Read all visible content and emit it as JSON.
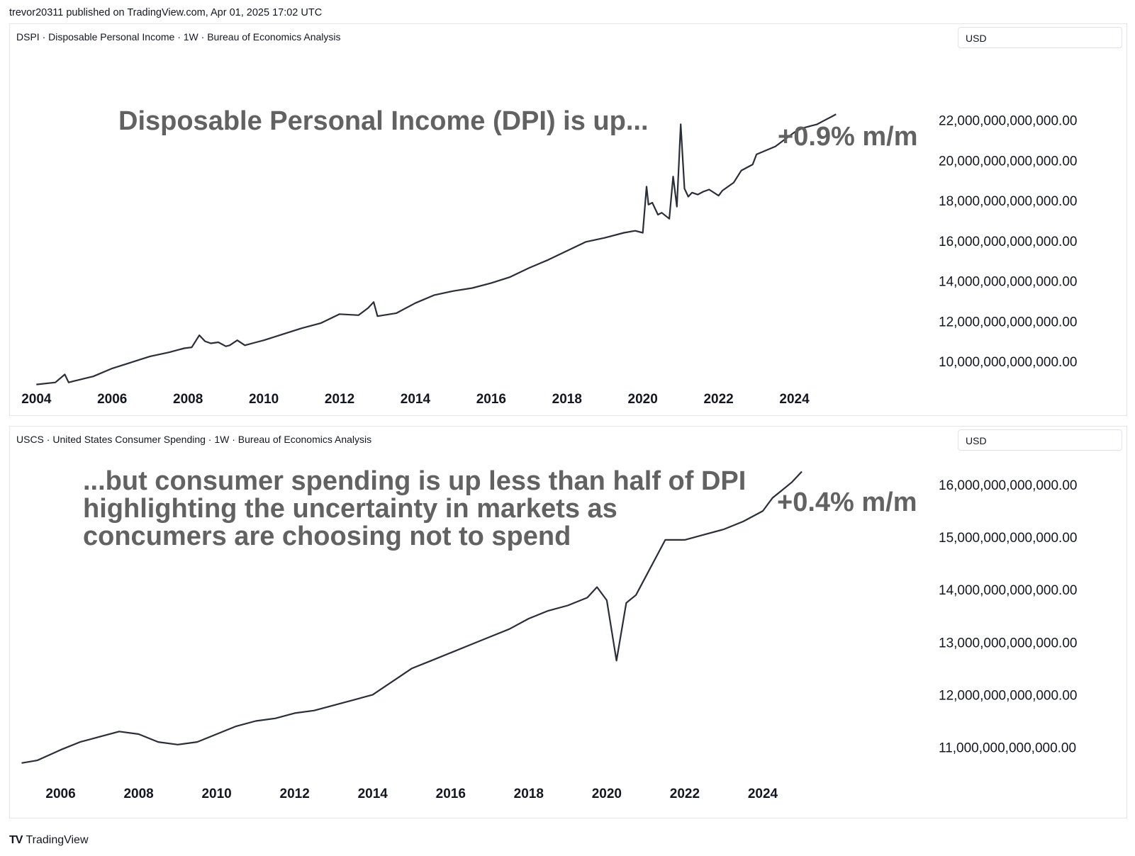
{
  "header": {
    "published": "trevor20311 published on TradingView.com, Apr 01, 2025 17:02 UTC"
  },
  "footer": {
    "brand": "TradingView",
    "logo_icon": "tradingview-logo-icon"
  },
  "colors": {
    "line": "#2a2e39",
    "annotation": "#626262",
    "text": "#131722"
  },
  "panels": [
    {
      "legend": "DSPI · Disposable Personal Income · 1W · Bureau of Economics Analysis",
      "currency": "USD",
      "annotation": "Disposable Personal Income (DPI) is up...",
      "change": "+0.9% m/m"
    },
    {
      "legend": "USCS · United States Consumer Spending · 1W · Bureau of Economics Analysis",
      "currency": "USD",
      "annotation": "...but consumer spending is up less than half of DPI\nhighlighting the uncertainty in markets as\nconcumers are choosing not to spend",
      "change": "+0.4% m/m"
    }
  ],
  "chart_data": [
    {
      "type": "line",
      "title": "DSPI · Disposable Personal Income · 1W · Bureau of Economics Analysis",
      "x_ticks": [
        2004,
        2006,
        2008,
        2010,
        2012,
        2014,
        2016,
        2018,
        2020,
        2022,
        2024
      ],
      "y_ticks": [
        10000000000000,
        12000000000000,
        14000000000000,
        16000000000000,
        18000000000000,
        20000000000000,
        22000000000000
      ],
      "y_tick_labels": [
        "10,000,000,000,000.00",
        "12,000,000,000,000.00",
        "14,000,000,000,000.00",
        "16,000,000,000,000.00",
        "18,000,000,000,000.00",
        "20,000,000,000,000.00",
        "22,000,000,000,000.00"
      ],
      "xlim": [
        2003.9,
        2025.0
      ],
      "ylim": [
        8800000000000,
        24600000000000
      ],
      "grid": false,
      "series": [
        {
          "x": [
            2004.0,
            2004.5,
            2004.75,
            2004.85,
            2004.95,
            2005.5,
            2006.0,
            2006.5,
            2007.0,
            2007.5,
            2007.9,
            2008.1,
            2008.3,
            2008.45,
            2008.6,
            2008.8,
            2009.0,
            2009.1,
            2009.3,
            2009.5,
            2009.8,
            2010.0,
            2010.5,
            2011.0,
            2011.5,
            2012.0,
            2012.5,
            2012.75,
            2012.9,
            2013.0,
            2013.5,
            2014.0,
            2014.5,
            2015.0,
            2015.5,
            2016.0,
            2016.5,
            2017.0,
            2017.5,
            2018.0,
            2018.5,
            2019.0,
            2019.5,
            2019.8,
            2020.0,
            2020.1,
            2020.15,
            2020.25,
            2020.4,
            2020.5,
            2020.7,
            2020.8,
            2020.9,
            2021.0,
            2021.1,
            2021.2,
            2021.3,
            2021.45,
            2021.6,
            2021.75,
            2022.0,
            2022.1,
            2022.4,
            2022.6,
            2022.9,
            2023.0,
            2023.5,
            2024.0,
            2024.2,
            2024.4,
            2024.6,
            2024.8,
            2025.0,
            2025.1
          ],
          "y": [
            8850000000000,
            8950000000000,
            9350000000000,
            8950000000000,
            9000000000000,
            9250000000000,
            9650000000000,
            9950000000000,
            10250000000000,
            10450000000000,
            10650000000000,
            10700000000000,
            11300000000000,
            11000000000000,
            10900000000000,
            10950000000000,
            10750000000000,
            10800000000000,
            11050000000000,
            10800000000000,
            10950000000000,
            11050000000000,
            11350000000000,
            11650000000000,
            11900000000000,
            12350000000000,
            12300000000000,
            12650000000000,
            12950000000000,
            12250000000000,
            12400000000000,
            12900000000000,
            13300000000000,
            13500000000000,
            13650000000000,
            13900000000000,
            14200000000000,
            14650000000000,
            15050000000000,
            15500000000000,
            15950000000000,
            16150000000000,
            16400000000000,
            16500000000000,
            16400000000000,
            18700000000000,
            17800000000000,
            17900000000000,
            17300000000000,
            17400000000000,
            17100000000000,
            19200000000000,
            17700000000000,
            21800000000000,
            18600000000000,
            18200000000000,
            18400000000000,
            18300000000000,
            18450000000000,
            18550000000000,
            18250000000000,
            18500000000000,
            18900000000000,
            19500000000000,
            19800000000000,
            20300000000000,
            20700000000000,
            21400000000000,
            21600000000000,
            21700000000000,
            21800000000000,
            22000000000000,
            22200000000000,
            22300000000000
          ]
        }
      ]
    },
    {
      "type": "line",
      "title": "USCS · United States Consumer Spending · 1W · Bureau of Economics Analysis",
      "x_ticks": [
        2006,
        2008,
        2010,
        2012,
        2014,
        2016,
        2018,
        2020,
        2022,
        2024
      ],
      "y_ticks": [
        11000000000000,
        12000000000000,
        13000000000000,
        14000000000000,
        15000000000000,
        16000000000000
      ],
      "y_tick_labels": [
        "11,000,000,000,000.00",
        "12,000,000,000,000.00",
        "13,000,000,000,000.00",
        "14,000,000,000,000.00",
        "15,000,000,000,000.00",
        "16,000,000,000,000.00"
      ],
      "xlim": [
        2004.7,
        2025.6
      ],
      "ylim": [
        10400000000000,
        16500000000000
      ],
      "grid": false,
      "series": [
        {
          "x": [
            2005.0,
            2005.4,
            2006.0,
            2006.5,
            2007.0,
            2007.5,
            2008.0,
            2008.5,
            2009.0,
            2009.5,
            2010.0,
            2010.5,
            2011.0,
            2011.5,
            2012.0,
            2012.5,
            2013.0,
            2013.5,
            2014.0,
            2014.5,
            2015.0,
            2015.5,
            2016.0,
            2016.5,
            2017.0,
            2017.5,
            2018.0,
            2018.5,
            2019.0,
            2019.5,
            2019.75,
            2020.0,
            2020.25,
            2020.5,
            2020.75,
            2021.0,
            2021.5,
            2022.0,
            2022.5,
            2023.0,
            2023.5,
            2024.0,
            2024.25,
            2024.5,
            2024.75,
            2025.0
          ],
          "y": [
            10700000000000,
            10750000000000,
            10950000000000,
            11100000000000,
            11200000000000,
            11300000000000,
            11250000000000,
            11100000000000,
            11050000000000,
            11100000000000,
            11250000000000,
            11400000000000,
            11500000000000,
            11550000000000,
            11650000000000,
            11700000000000,
            11800000000000,
            11900000000000,
            12000000000000,
            12250000000000,
            12500000000000,
            12650000000000,
            12800000000000,
            12950000000000,
            13100000000000,
            13250000000000,
            13450000000000,
            13600000000000,
            13700000000000,
            13850000000000,
            14050000000000,
            13800000000000,
            12650000000000,
            13750000000000,
            13900000000000,
            14250000000000,
            14950000000000,
            14950000000000,
            15050000000000,
            15150000000000,
            15300000000000,
            15500000000000,
            15750000000000,
            15900000000000,
            16050000000000,
            16250000000000
          ]
        }
      ]
    }
  ]
}
